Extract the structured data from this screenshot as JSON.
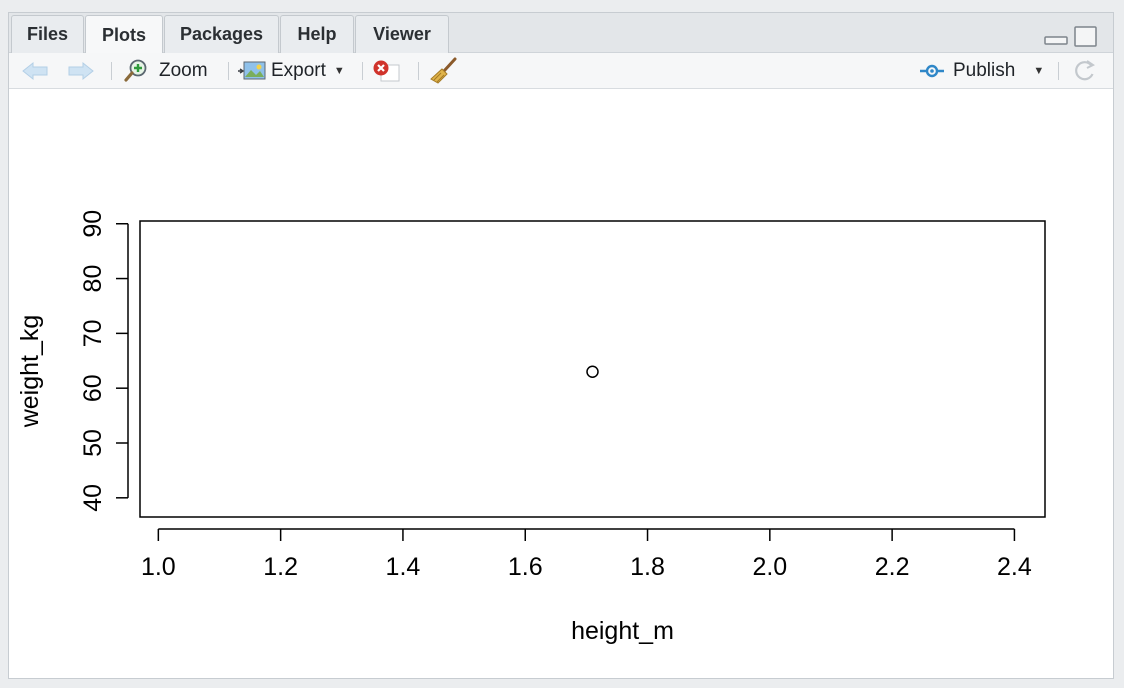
{
  "tabs": [
    {
      "label": "Files"
    },
    {
      "label": "Plots"
    },
    {
      "label": "Packages"
    },
    {
      "label": "Help"
    },
    {
      "label": "Viewer"
    }
  ],
  "active_tab": "Plots",
  "toolbar": {
    "back_icon": "arrow-left-icon",
    "forward_icon": "arrow-right-icon",
    "zoom_label": "Zoom",
    "export_label": "Export",
    "publish_label": "Publish",
    "remove_icon": "remove-plot-icon",
    "clear_icon": "broom-icon",
    "refresh_icon": "refresh-icon"
  },
  "colors": {
    "accent_publish": "#2f87c8",
    "remove_red": "#d0332b"
  },
  "chart_data": {
    "type": "scatter",
    "xlabel": "height_m",
    "ylabel": "weight_kg",
    "xlim": [
      0.97,
      2.45
    ],
    "ylim": [
      36.5,
      90.5
    ],
    "x_ticks": [
      "1.0",
      "1.2",
      "1.4",
      "1.6",
      "1.8",
      "2.0",
      "2.2",
      "2.4"
    ],
    "y_ticks": [
      "40",
      "50",
      "60",
      "70",
      "80",
      "90"
    ],
    "points": [
      {
        "x": 1.71,
        "y": 63
      }
    ],
    "grid": false,
    "marker": "open-circle"
  }
}
